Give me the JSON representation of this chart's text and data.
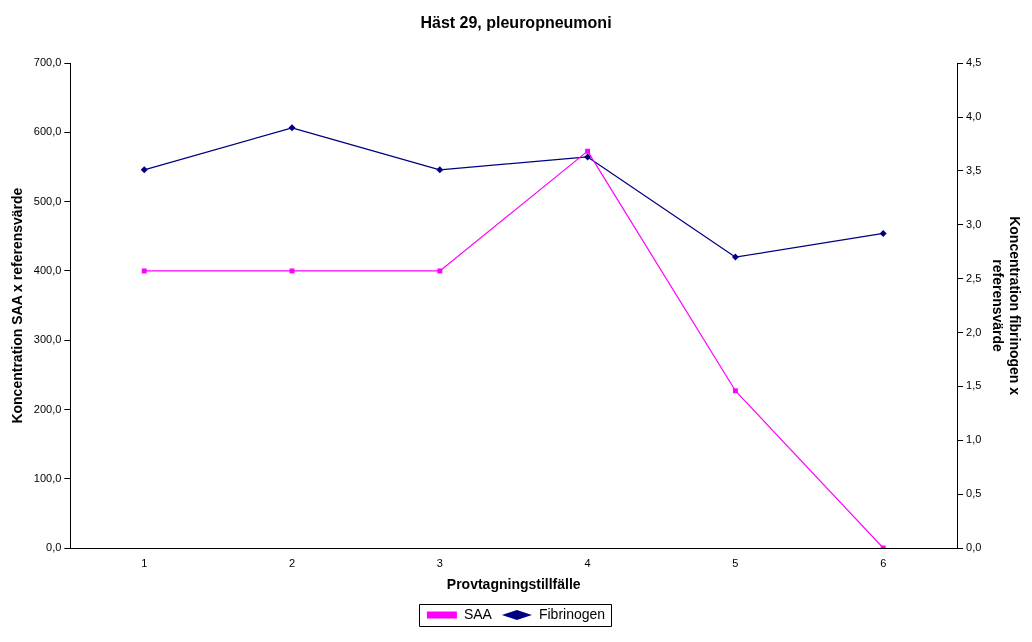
{
  "chart_data": {
    "type": "line",
    "title": "Häst 29, pleuropneumoni",
    "xlabel": "Provtagningstillfälle",
    "ylabel": "Koncentration SAA x referensvärde",
    "y2label": "Koncentration fibrinogen x referensvärde",
    "categories": [
      "1",
      "2",
      "3",
      "4",
      "5",
      "6"
    ],
    "series": [
      {
        "name": "SAA",
        "color": "#ff00ff",
        "marker": "square",
        "values": [
          400,
          400,
          400,
          573,
          227,
          0
        ]
      },
      {
        "name": "Fibrinogen",
        "color": "#000080",
        "marker": "diamond",
        "axis": "y2",
        "values": [
          3.51,
          3.9,
          3.51,
          3.63,
          2.7,
          2.92
        ]
      }
    ],
    "ylim": [
      0,
      700
    ],
    "yticks": [
      {
        "value": 0,
        "label": "0,0"
      },
      {
        "value": 100,
        "label": "100,0"
      },
      {
        "value": 200,
        "label": "200,0"
      },
      {
        "value": 300,
        "label": "300,0"
      },
      {
        "value": 400,
        "label": "400,0"
      },
      {
        "value": 500,
        "label": "500,0"
      },
      {
        "value": 600,
        "label": "600,0"
      },
      {
        "value": 700,
        "label": "700,0"
      }
    ],
    "y2lim": [
      0,
      4.5
    ],
    "y2ticks": [
      {
        "value": 0,
        "label": "0,0"
      },
      {
        "value": 0.5,
        "label": "0,5"
      },
      {
        "value": 1,
        "label": "1,0"
      },
      {
        "value": 1.5,
        "label": "1,5"
      },
      {
        "value": 2,
        "label": "2,0"
      },
      {
        "value": 2.5,
        "label": "2,5"
      },
      {
        "value": 3,
        "label": "3,0"
      },
      {
        "value": 3.5,
        "label": "3,5"
      },
      {
        "value": 4,
        "label": "4,0"
      },
      {
        "value": 4.5,
        "label": "4,5"
      }
    ],
    "grid": false,
    "legend": "bottom",
    "line_style": "solid"
  }
}
